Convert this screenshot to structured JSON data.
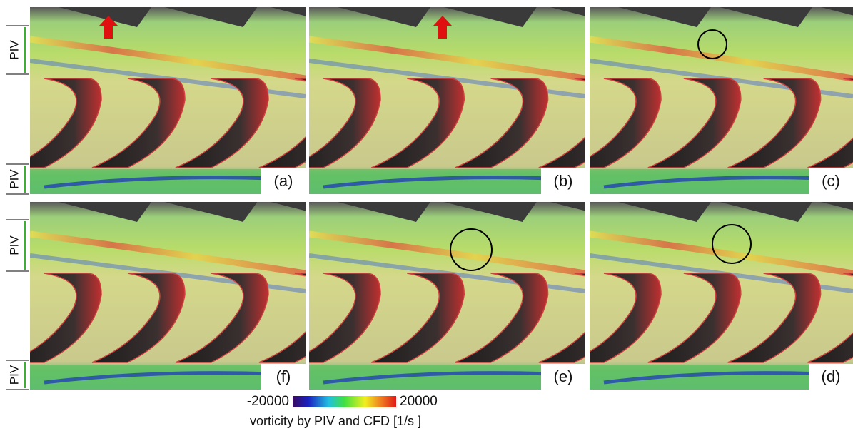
{
  "figure": {
    "panels": [
      [
        "(a)",
        "(b)",
        "(c)"
      ],
      [
        "(f)",
        "(e)",
        "(d)"
      ]
    ],
    "piv_labels": [
      "PIV",
      "PIV",
      "PIV",
      "PIV"
    ],
    "colorbar": {
      "min": -20000,
      "max": 20000,
      "caption": "vorticity by PIV and CFD [1/s ]"
    }
  }
}
